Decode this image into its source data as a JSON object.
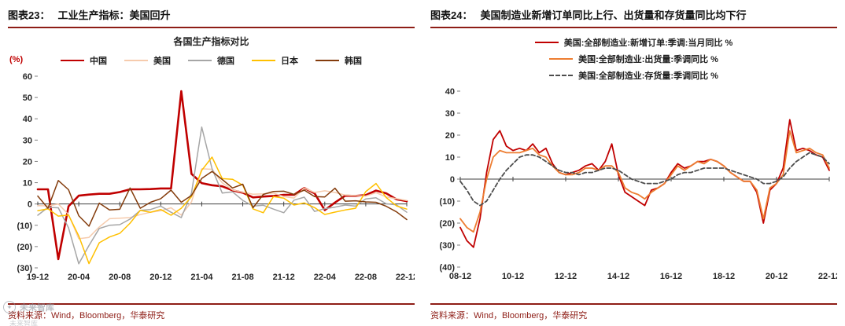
{
  "page": {
    "colors": {
      "accent": "#8e1d16",
      "red": "#c00000"
    }
  },
  "watermark": {
    "text": "未来智库",
    "badge_glyph": "✦"
  },
  "panels": [
    {
      "header": {
        "tag": "图表23：",
        "title": "工业生产指标：美国回升"
      },
      "source": "资料来源：Wind，Bloomberg，华泰研究"
    },
    {
      "header": {
        "tag": "图表24：",
        "title": "美国制造业新增订单同比上行、出货量和存货量同比均下行"
      },
      "source": "资料来源：Wind，Bloomberg，华泰研究"
    }
  ],
  "chart_data": [
    {
      "type": "line",
      "title": "各国生产指标对比",
      "xlabel": "",
      "ylabel": "(%)",
      "ylim": [
        -30,
        60
      ],
      "ytick_step": 10,
      "grid": false,
      "legend_position": "top",
      "x": [
        "19-12",
        "20-01",
        "20-02",
        "20-03",
        "20-04",
        "20-05",
        "20-06",
        "20-07",
        "20-08",
        "20-09",
        "20-10",
        "20-11",
        "20-12",
        "21-01",
        "21-02",
        "21-03",
        "21-04",
        "21-05",
        "21-06",
        "21-07",
        "21-08",
        "21-09",
        "21-10",
        "21-11",
        "21-12",
        "22-01",
        "22-02",
        "22-03",
        "22-04",
        "22-05",
        "22-06",
        "22-07",
        "22-08",
        "22-09",
        "22-10",
        "22-11",
        "22-12"
      ],
      "x_labels_shown": [
        "19-12",
        "20-04",
        "20-08",
        "20-12",
        "21-04",
        "21-08",
        "21-12",
        "22-04",
        "22-08",
        "22-12"
      ],
      "series": [
        {
          "name": "中国",
          "color": "#c00000",
          "width": 2.6,
          "dash": null,
          "values": [
            6.9,
            6.9,
            -25.9,
            -1.1,
            3.9,
            4.4,
            4.8,
            4.8,
            5.6,
            6.9,
            6.9,
            7.0,
            7.3,
            7.3,
            53.0,
            14.1,
            9.8,
            8.8,
            8.3,
            6.4,
            5.3,
            3.1,
            3.5,
            3.8,
            4.3,
            4.3,
            7.5,
            5.0,
            -2.9,
            0.7,
            3.9,
            3.8,
            4.2,
            6.3,
            5.0,
            2.2,
            1.3
          ]
        },
        {
          "name": "美国",
          "color": "#f6cbad",
          "width": 1.5,
          "dash": null,
          "values": [
            -0.8,
            -0.9,
            0.0,
            -4.9,
            -16.3,
            -15.7,
            -10.8,
            -6.9,
            -6.7,
            -6.4,
            -5.0,
            -3.9,
            -3.2,
            -1.8,
            -5.2,
            1.0,
            16.5,
            16.3,
            9.9,
            6.6,
            5.5,
            4.6,
            4.8,
            5.1,
            3.5,
            2.8,
            7.5,
            5.4,
            6.2,
            5.4,
            4.2,
            3.9,
            3.7,
            5.3,
            3.3,
            2.5,
            1.6
          ]
        },
        {
          "name": "德国",
          "color": "#a6a6a6",
          "width": 1.5,
          "dash": null,
          "values": [
            -5.3,
            -1.6,
            -1.8,
            -11.2,
            -28.1,
            -19.5,
            -11.5,
            -10.0,
            -9.7,
            -7.1,
            -3.0,
            -2.6,
            -1.0,
            -3.9,
            -6.4,
            5.1,
            36.1,
            16.6,
            5.1,
            5.7,
            1.7,
            -1.0,
            -0.6,
            -2.4,
            -4.1,
            1.8,
            3.2,
            -3.5,
            -2.2,
            -1.5,
            -0.5,
            -1.0,
            2.4,
            2.9,
            0.1,
            -0.4,
            -3.9
          ]
        },
        {
          "name": "日本",
          "color": "#ffc000",
          "width": 1.5,
          "dash": null,
          "values": [
            -3.2,
            -2.3,
            -5.7,
            -5.2,
            -15.0,
            -28.0,
            -18.2,
            -15.5,
            -13.8,
            -9.0,
            -3.0,
            -3.9,
            -2.6,
            -5.3,
            -2.0,
            3.4,
            15.8,
            22.0,
            11.9,
            11.6,
            8.8,
            -2.3,
            -4.1,
            3.5,
            2.7,
            -0.5,
            0.5,
            -1.7,
            -4.9,
            -3.8,
            -2.8,
            -2.0,
            5.8,
            9.6,
            3.0,
            -0.9,
            -2.4
          ]
        },
        {
          "name": "韩国",
          "color": "#843c0c",
          "width": 1.5,
          "dash": null,
          "values": [
            3.7,
            -2.0,
            11.0,
            6.7,
            -5.5,
            -10.4,
            0.4,
            -2.8,
            -2.5,
            7.5,
            -2.0,
            0.8,
            2.5,
            6.5,
            0.8,
            4.0,
            12.0,
            15.3,
            11.5,
            7.5,
            9.3,
            -1.8,
            4.5,
            5.9,
            6.0,
            4.5,
            6.5,
            3.5,
            3.3,
            7.4,
            1.3,
            1.5,
            1.0,
            0.8,
            -1.1,
            -3.7,
            -7.3
          ]
        }
      ]
    },
    {
      "type": "line",
      "title": "",
      "xlabel": "",
      "ylabel": "",
      "ylim": [
        -40,
        40
      ],
      "ytick_step": 10,
      "grid": false,
      "legend_position": "top",
      "x": [
        "08-12",
        "09-03",
        "09-06",
        "09-09",
        "09-12",
        "10-03",
        "10-06",
        "10-09",
        "10-12",
        "11-03",
        "11-06",
        "11-09",
        "11-12",
        "12-03",
        "12-06",
        "12-09",
        "12-12",
        "13-03",
        "13-06",
        "13-09",
        "13-12",
        "14-03",
        "14-06",
        "14-09",
        "14-12",
        "15-03",
        "15-06",
        "15-09",
        "15-12",
        "16-03",
        "16-06",
        "16-09",
        "16-12",
        "17-03",
        "17-06",
        "17-09",
        "17-12",
        "18-03",
        "18-06",
        "18-09",
        "18-12",
        "19-03",
        "19-06",
        "19-09",
        "19-12",
        "20-03",
        "20-06",
        "20-09",
        "20-12",
        "21-03",
        "21-06",
        "21-09",
        "21-12",
        "22-03",
        "22-06",
        "22-09",
        "22-12"
      ],
      "x_labels_shown": [
        "08-12",
        "10-12",
        "12-12",
        "14-12",
        "16-12",
        "18-12",
        "20-12",
        "22-12"
      ],
      "series": [
        {
          "name": "美国:全部制造业:新增订单:季调:当月同比 %",
          "color": "#c00000",
          "width": 1.8,
          "dash": null,
          "values": [
            -22,
            -28,
            -31,
            -18,
            3,
            18,
            22,
            15,
            13,
            14,
            13,
            16,
            12,
            14,
            7,
            3,
            2,
            3,
            4,
            6,
            7,
            4,
            8,
            16,
            2,
            -6,
            -8,
            -10,
            -12,
            -5,
            -4,
            -2,
            3,
            7,
            5,
            6,
            8,
            8,
            9,
            8,
            6,
            3,
            1,
            -1,
            -1,
            -6,
            -20,
            -5,
            -2,
            5,
            27,
            13,
            14,
            13,
            11,
            10,
            4
          ]
        },
        {
          "name": "美国:全部制造业:出货量:季调同比 %",
          "color": "#ed7d31",
          "width": 1.8,
          "dash": null,
          "values": [
            -18,
            -22,
            -24,
            -15,
            0,
            10,
            13,
            12,
            12,
            12,
            13,
            14,
            11,
            10,
            6,
            3,
            2,
            2,
            3,
            5,
            5,
            4,
            6,
            6,
            3,
            -4,
            -6,
            -7,
            -9,
            -6,
            -4,
            -2,
            2,
            6,
            4,
            6,
            8,
            7,
            9,
            8,
            6,
            3,
            1,
            -1,
            -1,
            -5,
            -18,
            -4,
            -2,
            2,
            22,
            12,
            13,
            14,
            12,
            11,
            5
          ]
        },
        {
          "name": "美国:全部制造业:存货量:季调同比 %",
          "color": "#4d4d4d",
          "width": 1.8,
          "dash": "5 3",
          "values": [
            -1,
            -5,
            -10,
            -12,
            -10,
            -5,
            0,
            4,
            7,
            10,
            11,
            11,
            10,
            8,
            6,
            4,
            3,
            3,
            2,
            3,
            3,
            4,
            5,
            5,
            4,
            2,
            0,
            -1,
            -2,
            -2,
            -2,
            -1,
            0,
            2,
            3,
            3,
            4,
            5,
            5,
            5,
            5,
            4,
            3,
            2,
            1,
            0,
            -2,
            -2,
            -1,
            1,
            5,
            8,
            10,
            12,
            11,
            10,
            7
          ]
        }
      ]
    }
  ]
}
